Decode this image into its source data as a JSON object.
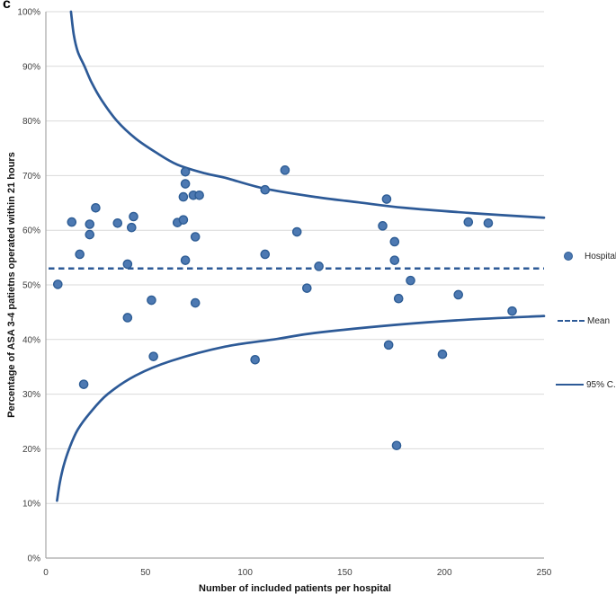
{
  "panel_label": "c",
  "chart_data": {
    "type": "scatter",
    "title": "",
    "xlabel": "Number of included patients per hospital",
    "ylabel": "Percentage of ASA 3-4 patietns operated within 21 hours",
    "xlim": [
      0,
      250
    ],
    "ylim": [
      0,
      100
    ],
    "x_ticks": [
      0,
      50,
      100,
      150,
      200,
      250
    ],
    "y_ticks": [
      0,
      10,
      20,
      30,
      40,
      50,
      60,
      70,
      80,
      90,
      100
    ],
    "y_tick_suffix": "%",
    "grid": "horizontal",
    "legend": {
      "position": "right",
      "entries": [
        {
          "label": "Hospital",
          "marker": "dot"
        },
        {
          "label": "Mean",
          "marker": "dashed-line"
        },
        {
          "label": "95% C.I.",
          "marker": "solid-line"
        }
      ]
    },
    "series": [
      {
        "name": "Hospital",
        "type": "scatter",
        "points": [
          [
            6,
            50.1
          ],
          [
            13,
            61.5
          ],
          [
            17,
            55.6
          ],
          [
            19,
            31.8
          ],
          [
            22,
            61.1
          ],
          [
            22,
            59.2
          ],
          [
            25,
            64.1
          ],
          [
            36,
            61.3
          ],
          [
            41,
            53.8
          ],
          [
            41,
            44.0
          ],
          [
            43,
            60.5
          ],
          [
            44,
            62.5
          ],
          [
            53,
            47.2
          ],
          [
            54,
            36.9
          ],
          [
            66,
            61.4
          ],
          [
            69,
            61.9
          ],
          [
            70,
            70.7
          ],
          [
            70,
            68.5
          ],
          [
            69,
            66.1
          ],
          [
            74,
            66.4
          ],
          [
            77,
            66.4
          ],
          [
            75,
            58.8
          ],
          [
            70,
            54.5
          ],
          [
            75,
            46.7
          ],
          [
            105,
            36.3
          ],
          [
            110,
            67.4
          ],
          [
            110,
            55.6
          ],
          [
            120,
            71.0
          ],
          [
            126,
            59.7
          ],
          [
            131,
            49.4
          ],
          [
            137,
            53.4
          ],
          [
            169,
            60.8
          ],
          [
            171,
            65.7
          ],
          [
            175,
            57.9
          ],
          [
            175,
            54.5
          ],
          [
            172,
            39.0
          ],
          [
            177,
            47.5
          ],
          [
            176,
            20.6
          ],
          [
            183,
            50.8
          ],
          [
            199,
            37.3
          ],
          [
            207,
            48.2
          ],
          [
            212,
            61.5
          ],
          [
            222,
            61.3
          ],
          [
            234,
            45.2
          ]
        ]
      },
      {
        "name": "Mean",
        "type": "hline",
        "y": 53
      },
      {
        "name": "95% C.I. upper",
        "type": "line",
        "points": [
          [
            12.6,
            100
          ],
          [
            14,
            95.8
          ],
          [
            16,
            92.7
          ],
          [
            19.4,
            90
          ],
          [
            23,
            87
          ],
          [
            28,
            83.8
          ],
          [
            35.7,
            80
          ],
          [
            45,
            76.8
          ],
          [
            55,
            74.3
          ],
          [
            66,
            72
          ],
          [
            80,
            70.4
          ],
          [
            90,
            69.6
          ],
          [
            110,
            67.6
          ],
          [
            135,
            66.1
          ],
          [
            157,
            65.1
          ],
          [
            180,
            64.1
          ],
          [
            215,
            63.1
          ],
          [
            250,
            62.3
          ]
        ]
      },
      {
        "name": "95% C.I. lower",
        "type": "line",
        "points": [
          [
            5.6,
            10.5
          ],
          [
            7,
            13.8
          ],
          [
            9,
            17
          ],
          [
            12,
            20.3
          ],
          [
            16,
            23.5
          ],
          [
            22,
            26.5
          ],
          [
            31,
            30
          ],
          [
            45,
            33.4
          ],
          [
            63,
            36.1
          ],
          [
            90,
            38.7
          ],
          [
            116,
            40.1
          ],
          [
            135,
            41.2
          ],
          [
            176,
            42.7
          ],
          [
            210,
            43.6
          ],
          [
            250,
            44.3
          ]
        ]
      }
    ],
    "colors": {
      "accent": "#2d5a97",
      "dot_fill": "#4d79b2",
      "dot_stroke": "#2e5d95",
      "grid": "#d9d9d9",
      "axis": "#a6a6a6",
      "tick_text": "#404040"
    }
  }
}
